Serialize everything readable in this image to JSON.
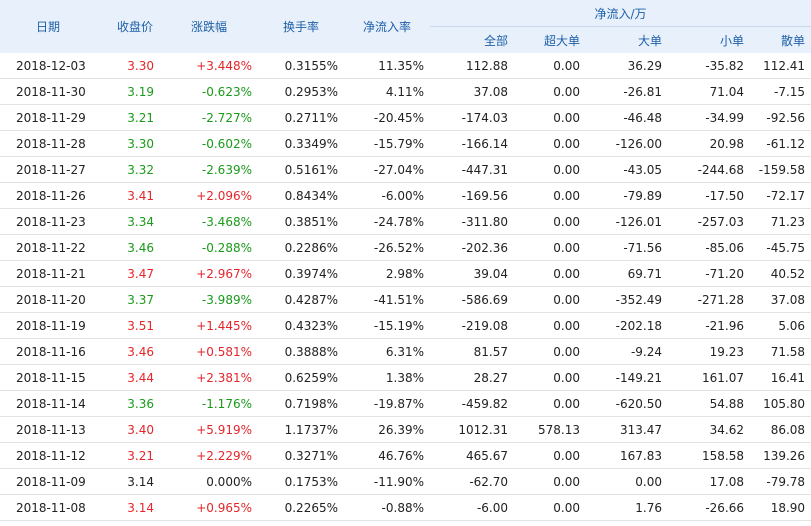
{
  "headers": {
    "date": "日期",
    "close": "收盘价",
    "change": "涨跌幅",
    "turnover": "换手率",
    "net_rate": "净流入率",
    "net_flow_group": "净流入/万",
    "all": "全部",
    "super_large": "超大单",
    "large": "大单",
    "small": "小单",
    "retail": "散单"
  },
  "rows": [
    {
      "date": "2018-12-03",
      "close": "3.30",
      "change": "+3.448%",
      "turnover": "0.3155%",
      "net_rate": "11.35%",
      "all": "112.88",
      "super_large": "0.00",
      "large": "36.29",
      "small": "-35.82",
      "retail": "112.41",
      "trend": "up"
    },
    {
      "date": "2018-11-30",
      "close": "3.19",
      "change": "-0.623%",
      "turnover": "0.2953%",
      "net_rate": "4.11%",
      "all": "37.08",
      "super_large": "0.00",
      "large": "-26.81",
      "small": "71.04",
      "retail": "-7.15",
      "trend": "down"
    },
    {
      "date": "2018-11-29",
      "close": "3.21",
      "change": "-2.727%",
      "turnover": "0.2711%",
      "net_rate": "-20.45%",
      "all": "-174.03",
      "super_large": "0.00",
      "large": "-46.48",
      "small": "-34.99",
      "retail": "-92.56",
      "trend": "down"
    },
    {
      "date": "2018-11-28",
      "close": "3.30",
      "change": "-0.602%",
      "turnover": "0.3349%",
      "net_rate": "-15.79%",
      "all": "-166.14",
      "super_large": "0.00",
      "large": "-126.00",
      "small": "20.98",
      "retail": "-61.12",
      "trend": "down"
    },
    {
      "date": "2018-11-27",
      "close": "3.32",
      "change": "-2.639%",
      "turnover": "0.5161%",
      "net_rate": "-27.04%",
      "all": "-447.31",
      "super_large": "0.00",
      "large": "-43.05",
      "small": "-244.68",
      "retail": "-159.58",
      "trend": "down"
    },
    {
      "date": "2018-11-26",
      "close": "3.41",
      "change": "+2.096%",
      "turnover": "0.8434%",
      "net_rate": "-6.00%",
      "all": "-169.56",
      "super_large": "0.00",
      "large": "-79.89",
      "small": "-17.50",
      "retail": "-72.17",
      "trend": "up"
    },
    {
      "date": "2018-11-23",
      "close": "3.34",
      "change": "-3.468%",
      "turnover": "0.3851%",
      "net_rate": "-24.78%",
      "all": "-311.80",
      "super_large": "0.00",
      "large": "-126.01",
      "small": "-257.03",
      "retail": "71.23",
      "trend": "down"
    },
    {
      "date": "2018-11-22",
      "close": "3.46",
      "change": "-0.288%",
      "turnover": "0.2286%",
      "net_rate": "-26.52%",
      "all": "-202.36",
      "super_large": "0.00",
      "large": "-71.56",
      "small": "-85.06",
      "retail": "-45.75",
      "trend": "down"
    },
    {
      "date": "2018-11-21",
      "close": "3.47",
      "change": "+2.967%",
      "turnover": "0.3974%",
      "net_rate": "2.98%",
      "all": "39.04",
      "super_large": "0.00",
      "large": "69.71",
      "small": "-71.20",
      "retail": "40.52",
      "trend": "up"
    },
    {
      "date": "2018-11-20",
      "close": "3.37",
      "change": "-3.989%",
      "turnover": "0.4287%",
      "net_rate": "-41.51%",
      "all": "-586.69",
      "super_large": "0.00",
      "large": "-352.49",
      "small": "-271.28",
      "retail": "37.08",
      "trend": "down"
    },
    {
      "date": "2018-11-19",
      "close": "3.51",
      "change": "+1.445%",
      "turnover": "0.4323%",
      "net_rate": "-15.19%",
      "all": "-219.08",
      "super_large": "0.00",
      "large": "-202.18",
      "small": "-21.96",
      "retail": "5.06",
      "trend": "up"
    },
    {
      "date": "2018-11-16",
      "close": "3.46",
      "change": "+0.581%",
      "turnover": "0.3888%",
      "net_rate": "6.31%",
      "all": "81.57",
      "super_large": "0.00",
      "large": "-9.24",
      "small": "19.23",
      "retail": "71.58",
      "trend": "up"
    },
    {
      "date": "2018-11-15",
      "close": "3.44",
      "change": "+2.381%",
      "turnover": "0.6259%",
      "net_rate": "1.38%",
      "all": "28.27",
      "super_large": "0.00",
      "large": "-149.21",
      "small": "161.07",
      "retail": "16.41",
      "trend": "up"
    },
    {
      "date": "2018-11-14",
      "close": "3.36",
      "change": "-1.176%",
      "turnover": "0.7198%",
      "net_rate": "-19.87%",
      "all": "-459.82",
      "super_large": "0.00",
      "large": "-620.50",
      "small": "54.88",
      "retail": "105.80",
      "trend": "down"
    },
    {
      "date": "2018-11-13",
      "close": "3.40",
      "change": "+5.919%",
      "turnover": "1.1737%",
      "net_rate": "26.39%",
      "all": "1012.31",
      "super_large": "578.13",
      "large": "313.47",
      "small": "34.62",
      "retail": "86.08",
      "trend": "up"
    },
    {
      "date": "2018-11-12",
      "close": "3.21",
      "change": "+2.229%",
      "turnover": "0.3271%",
      "net_rate": "46.76%",
      "all": "465.67",
      "super_large": "0.00",
      "large": "167.83",
      "small": "158.58",
      "retail": "139.26",
      "trend": "up"
    },
    {
      "date": "2018-11-09",
      "close": "3.14",
      "change": "0.000%",
      "turnover": "0.1753%",
      "net_rate": "-11.90%",
      "all": "-62.70",
      "super_large": "0.00",
      "large": "0.00",
      "small": "17.08",
      "retail": "-79.78",
      "trend": "flat"
    },
    {
      "date": "2018-11-08",
      "close": "3.14",
      "change": "+0.965%",
      "turnover": "0.2265%",
      "net_rate": "-0.88%",
      "all": "-6.00",
      "super_large": "0.00",
      "large": "1.76",
      "small": "-26.66",
      "retail": "18.90",
      "trend": "up"
    }
  ],
  "colors": {
    "up": "#e4262b",
    "down": "#1a9a1a",
    "flat": "#222222",
    "header_bg": "#e8f1fb",
    "header_text": "#1e5fa8"
  },
  "icons": {
    "sort": "sort-down-arrow-icon"
  }
}
